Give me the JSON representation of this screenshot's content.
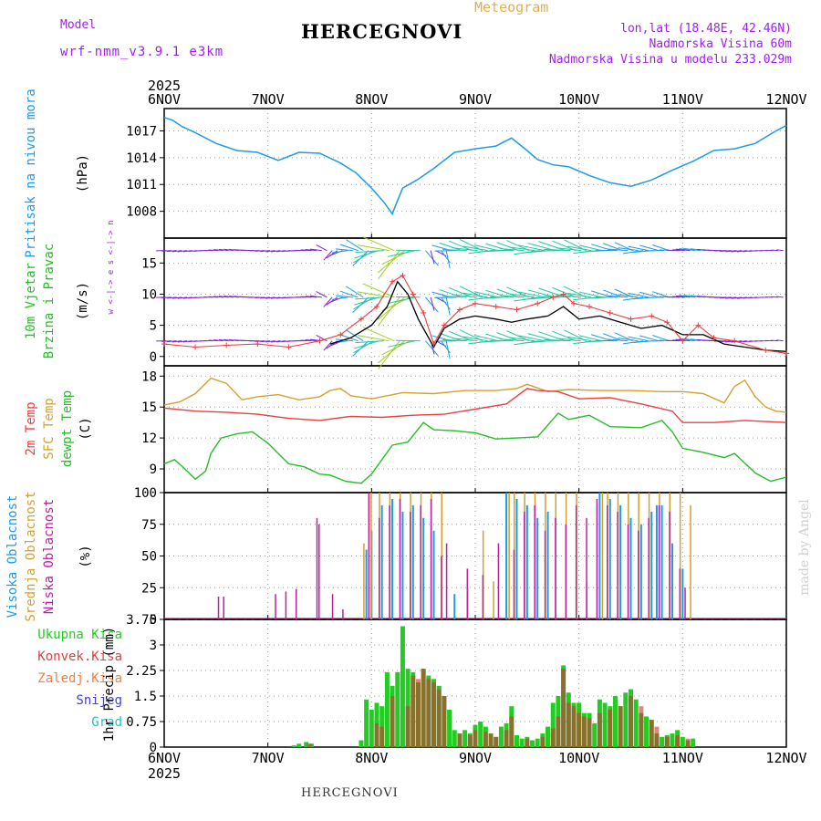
{
  "header": {
    "model_label": "Model",
    "model_name": "wrf-nmm_v3.9.1 e3km",
    "title": "HERCEGNOVI",
    "meteogram": "Meteogram",
    "lonlat": "lon,lat (18.48E, 42.46N)",
    "elevation": "Nadmorska Visina 60m",
    "model_elevation": "Nadmorska Visina u modelu 233.029m"
  },
  "footer": {
    "station": "HERCEGNOVI",
    "credit": "made by Angel"
  },
  "colors": {
    "pressure": "#1e9be6",
    "temp2m": "#e84040",
    "sfc": "#d4a030",
    "dewpt": "#22c022",
    "high_cloud": "#1e9be6",
    "mid_cloud": "#d4a030",
    "low_cloud": "#c020a0",
    "total_precip": "#22cc22",
    "conv_precip": "#cc3333",
    "wind_speed": "#000000",
    "wind_gust": "#e84040"
  },
  "chart_data": [
    {
      "type": "line",
      "name": "pressure",
      "ylabel_side": "Pritisak na nivou mora",
      "ylabel": "(hPa)",
      "yticks": [
        "1008",
        "1011",
        "1014",
        "1017"
      ],
      "ylim": [
        1005,
        1019.5
      ],
      "x_days": [
        "6NOV",
        "7NOV",
        "8NOV",
        "9NOV",
        "10NOV",
        "11NOV",
        "12NOV"
      ],
      "year": "2025",
      "x": [
        0,
        0.08,
        0.17,
        0.3,
        0.5,
        0.7,
        0.9,
        1.1,
        1.3,
        1.5,
        1.7,
        1.85,
        2.0,
        2.12,
        2.2,
        2.23,
        2.3,
        2.45,
        2.6,
        2.8,
        3.0,
        3.2,
        3.35,
        3.5,
        3.6,
        3.75,
        3.9,
        4.1,
        4.3,
        4.5,
        4.7,
        4.9,
        5.1,
        5.3,
        5.5,
        5.7,
        5.9,
        6.0
      ],
      "values": [
        1018.5,
        1018.2,
        1017.5,
        1016.8,
        1015.6,
        1014.8,
        1014.6,
        1013.7,
        1014.6,
        1014.5,
        1013.4,
        1012.3,
        1010.6,
        1009.0,
        1007.7,
        1008.6,
        1010.6,
        1011.6,
        1012.8,
        1014.6,
        1015.0,
        1015.3,
        1016.2,
        1014.8,
        1013.8,
        1013.2,
        1013.0,
        1012.0,
        1011.2,
        1010.8,
        1011.5,
        1012.6,
        1013.6,
        1014.8,
        1015.0,
        1015.6,
        1017.0,
        1017.6
      ]
    },
    {
      "type": "line",
      "name": "wind",
      "ylabel_side1": "10m Vjetar",
      "ylabel_side2": "Brzina i Pravac",
      "ylabel": "(m/s)",
      "compass": "w <-|-> e  s <-|-> n",
      "yticks": [
        "0",
        "5",
        "10",
        "15"
      ],
      "ylim": [
        -1.5,
        19
      ],
      "series": [
        {
          "name": "speed",
          "x": [
            1.6,
            1.8,
            2.0,
            2.15,
            2.25,
            2.35,
            2.45,
            2.6,
            2.7,
            2.85,
            3.0,
            3.2,
            3.35,
            3.5,
            3.7,
            3.85,
            4.0,
            4.2,
            4.4,
            4.6,
            4.8,
            5.0,
            5.2,
            5.4,
            5.6,
            5.8,
            6.0
          ],
          "values": [
            2.0,
            3.0,
            5.0,
            8.0,
            12.0,
            10.0,
            6.0,
            1.5,
            4.5,
            6.0,
            6.5,
            6.0,
            5.5,
            6.0,
            6.5,
            8.0,
            6.0,
            6.5,
            5.5,
            4.5,
            5.0,
            3.5,
            3.5,
            2.0,
            1.5,
            1.0,
            0.8
          ]
        },
        {
          "name": "gust",
          "x": [
            0,
            0.3,
            0.6,
            0.9,
            1.2,
            1.5,
            1.7,
            1.9,
            2.05,
            2.2,
            2.3,
            2.4,
            2.5,
            2.6,
            2.7,
            2.85,
            3.0,
            3.2,
            3.4,
            3.6,
            3.75,
            3.85,
            3.95,
            4.1,
            4.3,
            4.5,
            4.7,
            4.85,
            5.0,
            5.15,
            5.3,
            5.5,
            5.8,
            6.0
          ],
          "values": [
            2.0,
            1.5,
            1.8,
            2.0,
            1.5,
            2.5,
            3.5,
            6.0,
            8.0,
            12.0,
            13.0,
            10.0,
            7.0,
            2.0,
            5.0,
            7.5,
            8.5,
            8.0,
            7.5,
            8.5,
            9.5,
            10.0,
            8.5,
            8.0,
            7.0,
            6.0,
            6.5,
            5.5,
            2.5,
            5.0,
            3.0,
            2.5,
            1.0,
            0.5
          ]
        }
      ]
    },
    {
      "type": "line",
      "name": "temperature",
      "ylabel_side1": "2m Temp",
      "ylabel_side2": "SFC Temp",
      "ylabel_side3": "dewpt Temp",
      "ylabel": "(C)",
      "yticks": [
        "9",
        "12",
        "15",
        "18"
      ],
      "ylim": [
        6.7,
        19
      ],
      "series": [
        {
          "name": "sfc",
          "x": [
            0,
            0.15,
            0.3,
            0.45,
            0.6,
            0.75,
            0.9,
            1.1,
            1.3,
            1.5,
            1.6,
            1.7,
            1.8,
            2.0,
            2.3,
            2.6,
            2.9,
            3.2,
            3.4,
            3.5,
            3.7,
            3.9,
            4.2,
            4.5,
            4.8,
            5.0,
            5.2,
            5.4,
            5.5,
            5.6,
            5.7,
            5.8,
            5.9,
            6.0
          ],
          "values": [
            15.2,
            15.5,
            16.3,
            17.8,
            17.3,
            15.7,
            16.0,
            16.2,
            15.7,
            16.0,
            16.6,
            16.8,
            16.1,
            15.8,
            16.4,
            16.3,
            16.6,
            16.6,
            16.8,
            17.2,
            16.5,
            16.7,
            16.6,
            16.6,
            16.5,
            16.5,
            16.3,
            15.4,
            17.0,
            17.6,
            16.0,
            15.0,
            14.6,
            14.5
          ]
        },
        {
          "name": "temp2m",
          "x": [
            0,
            0.3,
            0.6,
            0.9,
            1.2,
            1.5,
            1.8,
            2.1,
            2.4,
            2.7,
            3.0,
            3.3,
            3.5,
            3.6,
            3.8,
            4.0,
            4.3,
            4.6,
            4.9,
            5.0,
            5.3,
            5.6,
            6.0
          ],
          "values": [
            14.9,
            14.6,
            14.5,
            14.3,
            13.9,
            13.7,
            14.1,
            14.0,
            14.2,
            14.3,
            14.8,
            15.3,
            16.8,
            16.6,
            16.5,
            15.8,
            15.9,
            15.3,
            14.6,
            13.5,
            13.5,
            13.7,
            13.5
          ]
        },
        {
          "name": "dewpt",
          "x": [
            0,
            0.1,
            0.2,
            0.3,
            0.4,
            0.45,
            0.55,
            0.7,
            0.85,
            1.0,
            1.1,
            1.2,
            1.35,
            1.5,
            1.6,
            1.75,
            1.9,
            2.0,
            2.2,
            2.35,
            2.5,
            2.6,
            2.8,
            3.0,
            3.2,
            3.4,
            3.6,
            3.8,
            3.9,
            4.1,
            4.3,
            4.6,
            4.8,
            4.9,
            5.0,
            5.2,
            5.4,
            5.5,
            5.7,
            5.85,
            6.0
          ],
          "values": [
            9.5,
            9.9,
            9.0,
            8.0,
            8.8,
            10.5,
            12.0,
            12.4,
            12.6,
            11.5,
            10.5,
            9.5,
            9.2,
            8.5,
            8.4,
            7.8,
            7.6,
            8.5,
            11.3,
            11.6,
            13.5,
            12.8,
            12.7,
            12.5,
            11.9,
            12.0,
            12.1,
            14.4,
            13.8,
            14.2,
            13.1,
            13.0,
            13.7,
            12.6,
            11.0,
            10.6,
            10.1,
            10.5,
            8.6,
            7.8,
            8.2
          ]
        }
      ]
    },
    {
      "type": "bar",
      "name": "cloud",
      "ylabel_side1": "Visoka Oblacnost",
      "ylabel_side2": "Srednja Oblacnost",
      "ylabel_side3": "Niska Oblacnost",
      "ylabel": "(%)",
      "yticks": [
        "0",
        "25",
        "50",
        "75",
        "100"
      ],
      "ylim": [
        0,
        100
      ],
      "series": [
        {
          "name": "high",
          "x": [
            1.95,
            2.0,
            2.1,
            2.2,
            2.3,
            2.4,
            2.5,
            2.6,
            2.8,
            3.3,
            3.4,
            3.5,
            3.6,
            3.7,
            4.2,
            4.3,
            4.4,
            4.5,
            4.6,
            4.7,
            4.75,
            4.8,
            4.9,
            5.0
          ],
          "values": [
            55,
            70,
            90,
            95,
            85,
            90,
            80,
            70,
            20,
            100,
            95,
            90,
            80,
            85,
            100,
            95,
            90,
            80,
            75,
            85,
            90,
            90,
            60,
            40
          ]
        },
        {
          "name": "mid",
          "x": [
            1.9,
            1.97,
            2.05,
            2.15,
            2.25,
            2.35,
            2.45,
            2.55,
            2.65,
            2.9,
            3.05,
            3.15,
            3.3,
            3.35,
            3.45,
            3.55,
            3.65,
            3.75,
            3.85,
            3.95,
            4.05,
            4.2,
            4.25,
            4.35,
            4.45,
            4.55,
            4.65,
            4.75,
            4.85,
            4.95,
            5.05
          ],
          "values": [
            60,
            100,
            100,
            100,
            100,
            100,
            100,
            100,
            100,
            25,
            70,
            30,
            100,
            100,
            100,
            100,
            100,
            100,
            100,
            100,
            30,
            100,
            100,
            100,
            100,
            100,
            100,
            100,
            100,
            100,
            90
          ]
        },
        {
          "name": "low",
          "x": [
            0.55,
            0.6,
            1.1,
            1.2,
            1.3,
            1.5,
            1.52,
            1.65,
            1.75,
            2.0,
            2.1,
            2.2,
            2.3,
            2.4,
            2.5,
            2.6,
            2.7,
            2.75,
            2.95,
            3.1,
            3.25,
            3.4,
            3.5,
            3.6,
            3.7,
            3.8,
            3.9,
            4.0,
            4.1,
            4.2,
            4.3,
            4.4,
            4.5,
            4.6,
            4.7,
            4.8,
            4.9,
            5.0,
            5.05
          ],
          "values": [
            18,
            18,
            20,
            22,
            24,
            80,
            75,
            20,
            8,
            100,
            80,
            90,
            95,
            85,
            90,
            95,
            50,
            60,
            40,
            35,
            60,
            55,
            85,
            90,
            70,
            80,
            75,
            90,
            80,
            95,
            90,
            85,
            75,
            70,
            80,
            90,
            85,
            40,
            25
          ]
        }
      ]
    },
    {
      "type": "bar",
      "name": "precip",
      "legend": [
        "Ukupna Kisa",
        "Konvek.Kisa",
        "Zaledj.Kisa",
        "Snijeg",
        "Grad"
      ],
      "ylabel": "1hr Precip (mm)",
      "yticks": [
        "0",
        "0.75",
        "1.5",
        "2.25",
        "3",
        "3.75"
      ],
      "ylim": [
        0,
        3.75
      ],
      "series": [
        {
          "name": "total",
          "x": [
            1.25,
            1.3,
            1.37,
            1.42,
            1.9,
            1.95,
            2.0,
            2.05,
            2.1,
            2.15,
            2.2,
            2.25,
            2.3,
            2.35,
            2.4,
            2.45,
            2.5,
            2.55,
            2.6,
            2.65,
            2.7,
            2.75,
            2.8,
            2.85,
            2.9,
            2.95,
            3.0,
            3.05,
            3.1,
            3.15,
            3.2,
            3.25,
            3.3,
            3.35,
            3.4,
            3.45,
            3.5,
            3.55,
            3.6,
            3.65,
            3.7,
            3.75,
            3.8,
            3.85,
            3.9,
            3.95,
            4.0,
            4.05,
            4.1,
            4.15,
            4.2,
            4.25,
            4.3,
            4.35,
            4.4,
            4.45,
            4.5,
            4.55,
            4.6,
            4.65,
            4.7,
            4.75,
            4.8,
            4.85,
            4.9,
            4.95,
            5.0,
            5.05,
            5.1
          ],
          "values": [
            0.05,
            0.1,
            0.15,
            0.1,
            0.2,
            1.4,
            1.1,
            1.3,
            1.2,
            2.2,
            1.8,
            2.2,
            3.55,
            2.3,
            2.2,
            1.9,
            2.3,
            2.1,
            2.0,
            1.8,
            1.5,
            1.1,
            0.5,
            0.4,
            0.5,
            0.4,
            0.65,
            0.75,
            0.6,
            0.4,
            0.3,
            0.6,
            0.7,
            1.2,
            0.35,
            0.25,
            0.3,
            0.2,
            0.25,
            0.4,
            0.6,
            1.3,
            1.5,
            2.4,
            1.6,
            1.3,
            1.3,
            1.0,
            1.0,
            0.7,
            1.4,
            1.3,
            1.2,
            1.5,
            1.2,
            1.6,
            1.7,
            1.4,
            1.0,
            0.9,
            0.8,
            0.4,
            0.3,
            0.35,
            0.4,
            0.5,
            0.3,
            0.2,
            0.25
          ]
        },
        {
          "name": "conv",
          "x": [
            1.4,
            2.05,
            2.1,
            2.2,
            2.35,
            2.4,
            2.45,
            2.5,
            2.55,
            2.6,
            2.65,
            2.7,
            2.85,
            2.95,
            3.0,
            3.1,
            3.15,
            3.2,
            3.3,
            3.35,
            3.5,
            3.65,
            3.75,
            3.8,
            3.85,
            3.9,
            3.95,
            4.0,
            4.05,
            4.1,
            4.2,
            4.3,
            4.4,
            4.5,
            4.6,
            4.7,
            4.75,
            4.85,
            4.95,
            5.05
          ],
          "values": [
            0.1,
            0.7,
            0.6,
            1.5,
            1.2,
            2.1,
            2.0,
            2.3,
            2.0,
            1.9,
            1.7,
            1.5,
            0.4,
            0.35,
            0.5,
            0.45,
            0.4,
            0.3,
            0.5,
            0.9,
            0.25,
            0.3,
            0.55,
            0.9,
            2.3,
            1.3,
            1.2,
            1.0,
            0.9,
            0.85,
            1.0,
            1.1,
            1.2,
            1.5,
            1.2,
            0.8,
            0.6,
            0.3,
            0.35,
            0.25
          ]
        }
      ]
    }
  ]
}
